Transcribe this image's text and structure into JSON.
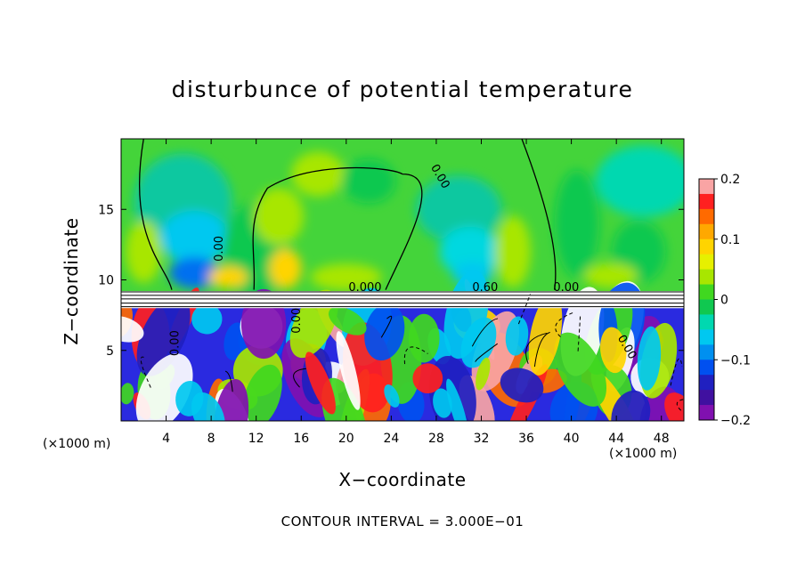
{
  "chart_data": {
    "type": "heatmap",
    "title": "disturbunce of potential temperature",
    "xlabel": "X−coordinate",
    "ylabel": "Z−coordinate",
    "x_unit": "(×1000 m)",
    "z_unit": "(×1000 m)",
    "xlim": [
      0,
      50
    ],
    "ylim": [
      0,
      20
    ],
    "x_ticks": [
      "4",
      "8",
      "12",
      "16",
      "20",
      "24",
      "28",
      "32",
      "36",
      "40",
      "44",
      "48"
    ],
    "y_ticks": [
      "5",
      "10",
      "15"
    ],
    "colorbar": {
      "range": [
        -0.2,
        0.2
      ],
      "tick_labels": [
        "0.2",
        "0.1",
        "0",
        "−0.1",
        "−0.2"
      ],
      "colors": [
        "#f9a4a4",
        "#ff2020",
        "#ff6a00",
        "#ffa800",
        "#ffd400",
        "#e6f000",
        "#a8e600",
        "#40d820",
        "#10c850",
        "#00d8b0",
        "#00c8f0",
        "#0090f0",
        "#0050f0",
        "#2020c0",
        "#4010a0",
        "#8010b0"
      ]
    },
    "contour_labels": [
      "0.00",
      "0.00",
      "0.000",
      "0.60",
      "0.00",
      "0.00",
      "0.00",
      "0.00"
    ],
    "contour_interval": "CONTOUR INTERVAL = 3.000E−01"
  }
}
